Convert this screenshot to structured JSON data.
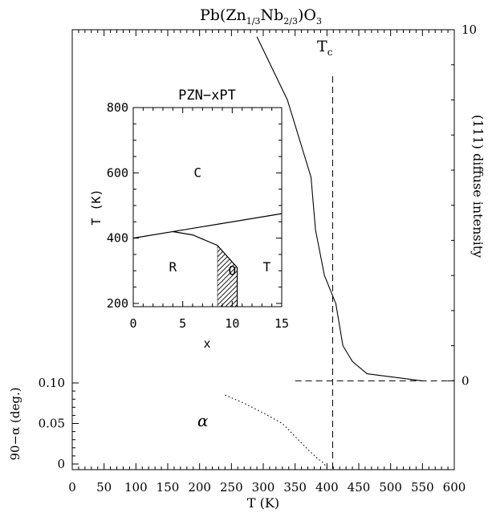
{
  "chart_data": [
    {
      "id": "main",
      "type": "line",
      "title": {
        "base": "Pb(Zn",
        "sub1": "1/3",
        "mid": "Nb",
        "sub2": "2/3",
        "end": ")O",
        "sub3": "3"
      },
      "xlabel": "T (K)",
      "xlim": [
        0,
        600
      ],
      "xticks": [
        0,
        50,
        100,
        150,
        200,
        250,
        300,
        350,
        400,
        450,
        500,
        550,
        600
      ],
      "right_axis": {
        "label": "(111) diffuse intensity",
        "ylim": [
          -2.53,
          10
        ],
        "ticks": [
          0,
          10
        ]
      },
      "left_axis": {
        "label": "90−α (deg.)",
        "ylim": [
          0,
          0.1
        ],
        "ticks": [
          "0",
          "0.05",
          "0.10"
        ],
        "tick_values": [
          0,
          0.05,
          0.1
        ]
      },
      "series": [
        {
          "style": "solid",
          "axis": "right",
          "x": [
            290,
            338,
            375,
            382,
            396,
            414,
            425,
            440,
            463,
            550
          ],
          "y": [
            9.8,
            8.0,
            5.8,
            4.3,
            3.0,
            2.2,
            1.0,
            0.55,
            0.2,
            0.0
          ]
        },
        {
          "style": "dotted",
          "axis": "left",
          "x": [
            240,
            270,
            300,
            330,
            355,
            370,
            385,
            395,
            400
          ],
          "y": [
            0.085,
            0.075,
            0.063,
            0.05,
            0.03,
            0.018,
            0.007,
            0.001,
            -0.005
          ]
        }
      ],
      "reference_lines": [
        {
          "style": "dashed",
          "orientation": "vertical",
          "x": 409
        },
        {
          "style": "dashed",
          "orientation": "horizontal",
          "axis": "right",
          "y": 0,
          "x_range": [
            350,
            600
          ]
        }
      ],
      "annotations": {
        "tc": {
          "base": "T",
          "sub": "c"
        },
        "alpha": "α"
      }
    },
    {
      "id": "inset",
      "type": "line",
      "title": "PZN−xPT",
      "xlabel": "x",
      "ylabel": "T (K)",
      "xlim": [
        0,
        15
      ],
      "ylim": [
        190,
        800
      ],
      "xticks": [
        0,
        5,
        10,
        15
      ],
      "yticks": [
        200,
        400,
        600,
        800
      ],
      "boundaries": [
        {
          "name": "cubic-boundary",
          "x": [
            0,
            15
          ],
          "y": [
            400,
            475
          ]
        },
        {
          "name": "rhombohedral-orthorhombic-boundary",
          "x": [
            4,
            6,
            8.5,
            10.5,
            10.5
          ],
          "y": [
            420,
            410,
            378,
            310,
            190
          ]
        }
      ],
      "hatched_region": {
        "x": [
          8.5,
          8.5,
          10.5,
          10.5,
          9.3
        ],
        "y": [
          190,
          378,
          310,
          190,
          190
        ]
      },
      "phase_labels": [
        {
          "text": "C",
          "x": 6.5,
          "y": 600
        },
        {
          "text": "R",
          "x": 4,
          "y": 310
        },
        {
          "text": "O",
          "x": 10,
          "y": 300
        },
        {
          "text": "T",
          "x": 13.5,
          "y": 310
        }
      ]
    }
  ]
}
